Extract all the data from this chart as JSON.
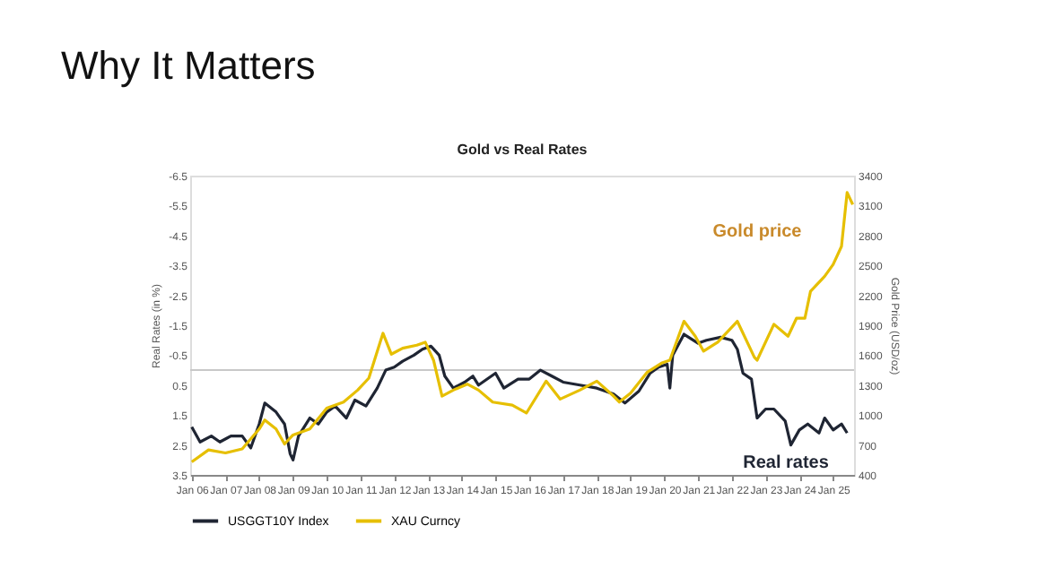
{
  "chart_data": {
    "type": "line",
    "title": "Why It Matters",
    "subtitle": "Gold vs Real Rates",
    "xlabel": null,
    "ylabel": "Real Rates (in %)",
    "y2label": "Gold Price (USD/oz)",
    "annotations": [
      "Gold price",
      "Real rates"
    ],
    "xlim": [
      "2005-12-15",
      "2025-08-15"
    ],
    "xticks": [
      {
        "value": "2006-01",
        "label": "Jan 06"
      },
      {
        "value": "2007-01",
        "label": "Jan 07"
      },
      {
        "value": "2008-01",
        "label": "Jan 08"
      },
      {
        "value": "2009-01",
        "label": "Jan 09"
      },
      {
        "value": "2010-01",
        "label": "Jan 10"
      },
      {
        "value": "2011-01",
        "label": "Jan 11"
      },
      {
        "value": "2012-01",
        "label": "Jan 12"
      },
      {
        "value": "2013-01",
        "label": "Jan 13"
      },
      {
        "value": "2014-01",
        "label": "Jan 14"
      },
      {
        "value": "2015-01",
        "label": "Jan 15"
      },
      {
        "value": "2016-01",
        "label": "Jan 16"
      },
      {
        "value": "2017-01",
        "label": "Jan 17"
      },
      {
        "value": "2018-01",
        "label": "Jan 18"
      },
      {
        "value": "2019-01",
        "label": "Jan 19"
      },
      {
        "value": "2020-01",
        "label": "Jan 20"
      },
      {
        "value": "2021-01",
        "label": "Jan 21"
      },
      {
        "value": "2022-01",
        "label": "Jan 22"
      },
      {
        "value": "2023-01",
        "label": "Jan 23"
      },
      {
        "value": "2024-01",
        "label": "Jan 24"
      },
      {
        "value": "2025-01",
        "label": "Jan 25"
      }
    ],
    "ylim": [
      3.5,
      -6.5
    ],
    "yticks": [
      -6.5,
      -5.5,
      -4.5,
      -3.5,
      -2.5,
      -1.5,
      -0.5,
      0.5,
      1.5,
      2.5,
      3.5
    ],
    "y2lim": [
      400,
      3400
    ],
    "y2ticks": [
      400,
      700,
      1000,
      1300,
      1600,
      1900,
      2200,
      2500,
      2800,
      3100,
      3400
    ],
    "ref_lines": [
      {
        "axis": "y",
        "value": 0,
        "label": null,
        "color": "#c8c8c8"
      }
    ],
    "grid": false,
    "legend": "bottom",
    "marker": "none",
    "line_style": "solid",
    "series": [
      {
        "name": "USGGT10Y Index",
        "color": "#1f2533",
        "axis": "y",
        "x": [
          "2006-01",
          "2006-04",
          "2006-08",
          "2006-11",
          "2007-03",
          "2007-07",
          "2007-10",
          "2008-01",
          "2008-03",
          "2008-07",
          "2008-10",
          "2008-12",
          "2009-01",
          "2009-03",
          "2009-07",
          "2009-10",
          "2010-01",
          "2010-04",
          "2010-08",
          "2010-11",
          "2011-03",
          "2011-07",
          "2011-10",
          "2012-01",
          "2012-04",
          "2012-08",
          "2012-11",
          "2013-02",
          "2013-05",
          "2013-07",
          "2013-10",
          "2014-02",
          "2014-05",
          "2014-07",
          "2015-01",
          "2015-04",
          "2015-09",
          "2016-01",
          "2016-05",
          "2016-09",
          "2017-01",
          "2017-07",
          "2018-01",
          "2018-07",
          "2018-11",
          "2019-04",
          "2019-08",
          "2019-11",
          "2020-02",
          "2020-03",
          "2020-04",
          "2020-08",
          "2021-01",
          "2021-04",
          "2021-09",
          "2022-01",
          "2022-03",
          "2022-05",
          "2022-08",
          "2022-10",
          "2023-01",
          "2023-04",
          "2023-08",
          "2023-10",
          "2024-01",
          "2024-04",
          "2024-08",
          "2024-10",
          "2025-01",
          "2025-04",
          "2025-06"
        ],
        "values": [
          1.9,
          2.4,
          2.2,
          2.4,
          2.2,
          2.2,
          2.6,
          1.8,
          1.1,
          1.4,
          1.8,
          2.8,
          3.0,
          2.2,
          1.6,
          1.8,
          1.4,
          1.2,
          1.6,
          1.0,
          1.2,
          0.6,
          0.0,
          -0.1,
          -0.3,
          -0.5,
          -0.7,
          -0.8,
          -0.5,
          0.2,
          0.6,
          0.4,
          0.2,
          0.5,
          0.1,
          0.6,
          0.3,
          0.3,
          0.0,
          0.2,
          0.4,
          0.5,
          0.6,
          0.8,
          1.1,
          0.7,
          0.1,
          -0.1,
          -0.2,
          0.6,
          -0.5,
          -1.2,
          -0.9,
          -1.0,
          -1.1,
          -1.0,
          -0.7,
          0.1,
          0.3,
          1.6,
          1.3,
          1.3,
          1.7,
          2.5,
          2.0,
          1.8,
          2.1,
          1.6,
          2.0,
          1.8,
          2.1
        ]
      },
      {
        "name": "XAU Curncy",
        "color": "#e6bf00",
        "axis": "y2",
        "x": [
          "2006-01",
          "2006-07",
          "2007-01",
          "2007-07",
          "2008-01",
          "2008-03",
          "2008-07",
          "2008-10",
          "2009-01",
          "2009-07",
          "2010-01",
          "2010-07",
          "2010-12",
          "2011-04",
          "2011-08",
          "2011-09",
          "2011-12",
          "2012-04",
          "2012-09",
          "2012-12",
          "2013-03",
          "2013-06",
          "2013-10",
          "2014-03",
          "2014-07",
          "2014-12",
          "2015-07",
          "2015-12",
          "2016-07",
          "2016-12",
          "2017-07",
          "2018-01",
          "2018-07",
          "2018-09",
          "2019-01",
          "2019-07",
          "2019-12",
          "2020-03",
          "2020-08",
          "2020-12",
          "2021-03",
          "2021-08",
          "2022-03",
          "2022-09",
          "2022-10",
          "2023-04",
          "2023-09",
          "2023-12",
          "2024-03",
          "2024-05",
          "2024-10",
          "2025-01",
          "2025-04",
          "2025-06",
          "2025-08"
        ],
        "values": [
          530,
          650,
          620,
          660,
          860,
          950,
          860,
          710,
          800,
          860,
          1070,
          1130,
          1250,
          1370,
          1730,
          1820,
          1610,
          1670,
          1700,
          1730,
          1550,
          1190,
          1250,
          1310,
          1250,
          1130,
          1100,
          1020,
          1340,
          1160,
          1250,
          1340,
          1190,
          1130,
          1220,
          1430,
          1520,
          1550,
          1940,
          1790,
          1640,
          1730,
          1940,
          1580,
          1550,
          1910,
          1790,
          1970,
          1970,
          2240,
          2390,
          2510,
          2690,
          3230,
          3110
        ]
      }
    ]
  }
}
